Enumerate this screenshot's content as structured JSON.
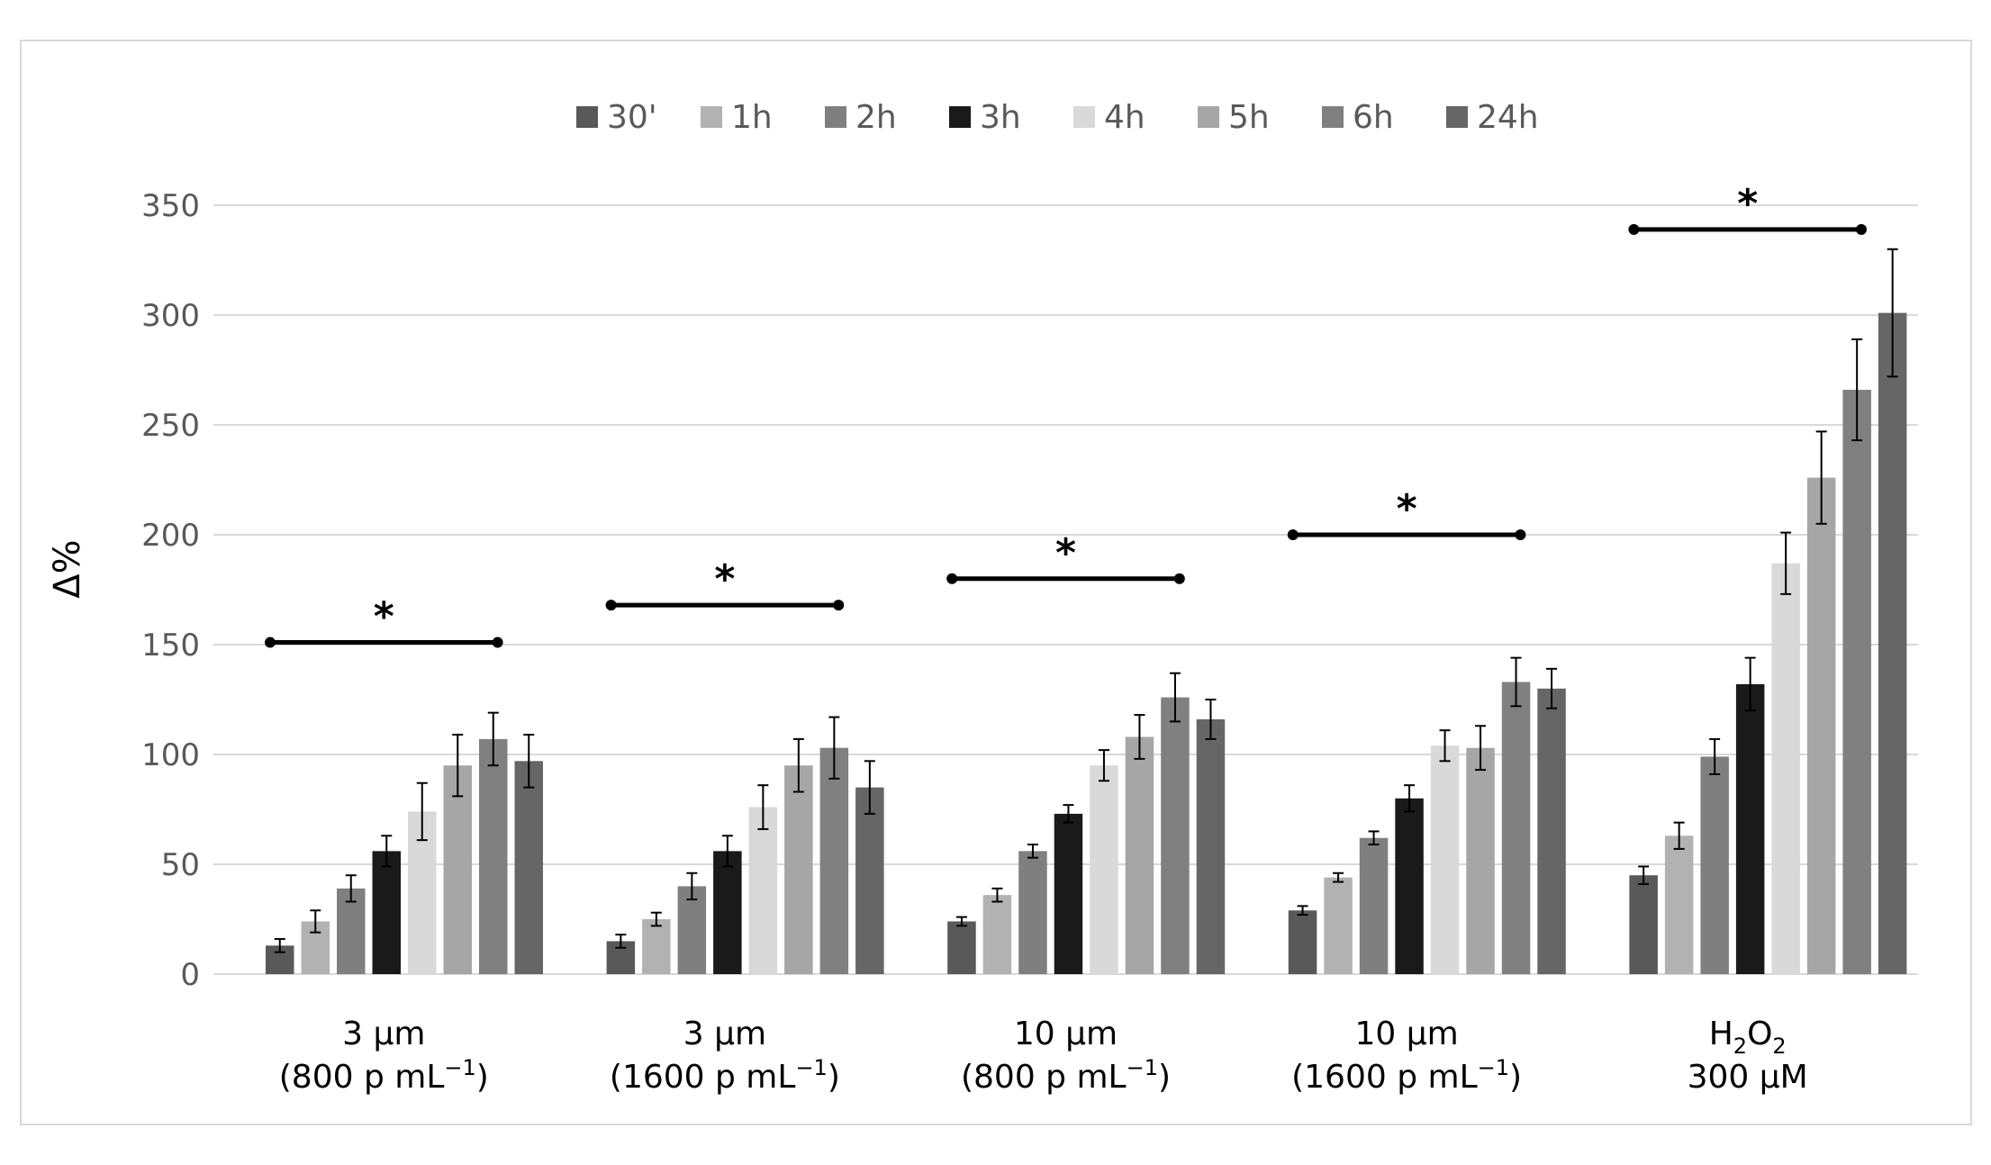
{
  "chart_data": {
    "type": "bar",
    "title": "",
    "xlabel": "",
    "ylabel": "Δ%",
    "ylim": [
      0,
      350
    ],
    "yticks": [
      "0",
      "50",
      "100",
      "150",
      "200",
      "250",
      "300",
      "350"
    ],
    "ytick_values": [
      0,
      50,
      100,
      150,
      200,
      250,
      300,
      350
    ],
    "grid": true,
    "legend_position": "top-center",
    "categories": [
      {
        "line1": "3 µm",
        "line2": "(800 p mL",
        "sup": "−1",
        "close": ")"
      },
      {
        "line1": "3 µm",
        "line2": "(1600 p mL",
        "sup": "−1",
        "close": ")"
      },
      {
        "line1": "10 µm",
        "line2": "(800 p mL",
        "sup": "−1",
        "close": ")"
      },
      {
        "line1": "10 µm",
        "line2": "(1600 p mL",
        "sup": "−1",
        "close": ")"
      },
      {
        "line1_parts": [
          "H",
          "2",
          "O",
          "2"
        ],
        "line2": "300 µM"
      }
    ],
    "series": [
      {
        "name": "30'",
        "color": "#595959",
        "values": [
          13,
          15,
          24,
          29,
          45
        ],
        "errors": [
          3,
          3,
          2,
          2,
          4
        ]
      },
      {
        "name": "1h",
        "color": "#b2b2b2",
        "values": [
          24,
          25,
          36,
          44,
          63
        ],
        "errors": [
          5,
          3,
          3,
          2,
          6
        ]
      },
      {
        "name": "2h",
        "color": "#7f7f7f",
        "values": [
          39,
          40,
          56,
          62,
          99
        ],
        "errors": [
          6,
          6,
          3,
          3,
          8
        ]
      },
      {
        "name": "3h",
        "color": "#1a1a1a",
        "values": [
          56,
          56,
          73,
          80,
          132
        ],
        "errors": [
          7,
          7,
          4,
          6,
          12
        ]
      },
      {
        "name": "4h",
        "color": "#d9d9d9",
        "values": [
          74,
          76,
          95,
          104,
          187
        ],
        "errors": [
          13,
          10,
          7,
          7,
          14
        ]
      },
      {
        "name": "5h",
        "color": "#a6a6a6",
        "values": [
          95,
          95,
          108,
          103,
          226
        ],
        "errors": [
          14,
          12,
          10,
          10,
          21
        ]
      },
      {
        "name": "6h",
        "color": "#808080",
        "values": [
          107,
          103,
          126,
          133,
          266
        ],
        "errors": [
          12,
          14,
          11,
          11,
          23
        ]
      },
      {
        "name": "24h",
        "color": "#666666",
        "values": [
          97,
          85,
          116,
          130,
          301
        ],
        "errors": [
          12,
          12,
          9,
          9,
          29
        ]
      }
    ],
    "significance": [
      {
        "group": 0,
        "level": 151,
        "label": "*"
      },
      {
        "group": 1,
        "level": 168,
        "label": "*"
      },
      {
        "group": 2,
        "level": 180,
        "label": "*"
      },
      {
        "group": 3,
        "level": 200,
        "label": "*"
      },
      {
        "group": 4,
        "level": 339,
        "label": "*"
      }
    ]
  }
}
